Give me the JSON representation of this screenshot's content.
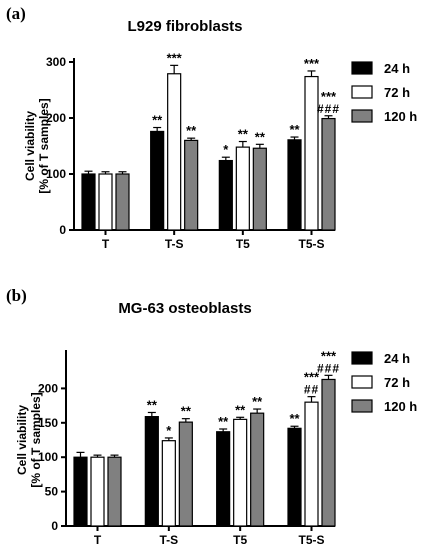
{
  "colors": {
    "24 h": "#000000",
    "72 h": "#ffffff",
    "120 h": "#808080",
    "axis": "#000000"
  },
  "chart_data": [
    {
      "panel_label": "(a)",
      "type": "bar",
      "title": "L929 fibroblasts",
      "ylabel_line1": "Cell viability",
      "ylabel_line2": "[% of T samples]",
      "ylim": [
        0,
        300
      ],
      "yticks": [
        0,
        100,
        200,
        300
      ],
      "categories": [
        "T",
        "T-S",
        "T5",
        "T5-S"
      ],
      "legend_position": "right",
      "series": [
        {
          "name": "24 h",
          "values": [
            100,
            176,
            124,
            161
          ],
          "errors": [
            5,
            7,
            6,
            5
          ],
          "annotations": [
            "",
            "**",
            "*",
            "**"
          ]
        },
        {
          "name": "72 h",
          "values": [
            100,
            279,
            148,
            274
          ],
          "errors": [
            4,
            15,
            10,
            10
          ],
          "annotations": [
            "",
            "***",
            "**",
            "***"
          ]
        },
        {
          "name": "120 h",
          "values": [
            100,
            160,
            146,
            199
          ],
          "errors": [
            4,
            4,
            7,
            5
          ],
          "annotations": [
            "",
            "**",
            "**",
            "***\n###"
          ]
        }
      ]
    },
    {
      "panel_label": "(b)",
      "type": "bar",
      "title": "MG-63 osteoblasts",
      "ylabel_line1": "Cell viability",
      "ylabel_line2": "[% of T samples]",
      "ylim": [
        0,
        250
      ],
      "yticks": [
        0,
        50,
        100,
        150,
        200
      ],
      "categories": [
        "T",
        "T-S",
        "T5",
        "T5-S"
      ],
      "legend_position": "right",
      "series": [
        {
          "name": "24 h",
          "values": [
            100,
            159,
            137,
            142
          ],
          "errors": [
            7,
            6,
            4,
            3
          ],
          "annotations": [
            "",
            "**",
            "**",
            "**"
          ]
        },
        {
          "name": "72 h",
          "values": [
            100,
            124,
            155,
            180
          ],
          "errors": [
            3,
            4,
            3,
            8
          ],
          "annotations": [
            "",
            "*",
            "**",
            "***\n##"
          ]
        },
        {
          "name": "120 h",
          "values": [
            100,
            151,
            164,
            213
          ],
          "errors": [
            3,
            5,
            6,
            6
          ],
          "annotations": [
            "",
            "**",
            "**",
            "***\n###"
          ]
        }
      ]
    }
  ]
}
